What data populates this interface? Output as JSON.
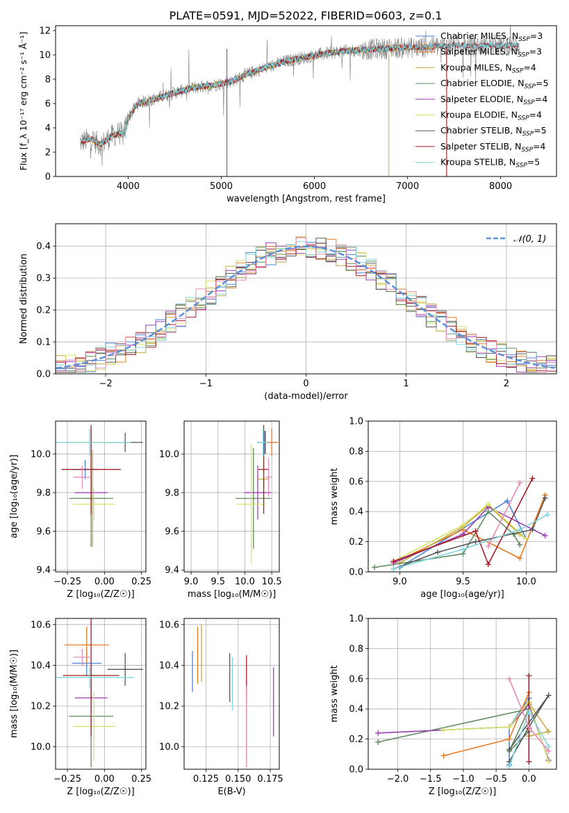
{
  "figure_title": "PLATE=0591, MJD=52022, FIBERID=0603, z=0.1",
  "palette": [
    "#4a86d6",
    "#e87a22",
    "#c8aa3c",
    "#5f8a5f",
    "#9a3fb0",
    "#d6e36a",
    "#555555",
    "#a41c25",
    "#7fd6dd",
    "#e58bb9"
  ],
  "chart_data": [
    {
      "id": "spectrum",
      "type": "line",
      "title": "PLATE=0591, MJD=52022, FIBERID=0603, z=0.1",
      "xlabel": "wavelength [Angstrom, rest frame]",
      "ylabel": "Flux [f_λ 10⁻¹⁷ erg cm⁻² s⁻¹ Å⁻¹]",
      "xlim": [
        3220,
        8600
      ],
      "ylim": [
        0,
        12.4
      ],
      "xticks": [
        4000,
        5000,
        6000,
        7000,
        8000
      ],
      "yticks": [
        0,
        2,
        4,
        6,
        8,
        10,
        12
      ],
      "grid": false,
      "legend_position": "upper-right",
      "observed_color": "#808080",
      "observed_profile": {
        "x": [
          3480,
          3600,
          3700,
          3800,
          3900,
          3950,
          4000,
          4100,
          4300,
          4500,
          4700,
          4900,
          5100,
          5300,
          5500,
          5700,
          5900,
          6100,
          6300,
          6500,
          6700,
          6900,
          7100,
          7300,
          7500,
          7700,
          7900,
          8100,
          8200
        ],
        "y": [
          2.8,
          3.1,
          2.6,
          3.2,
          3.6,
          3.4,
          4.8,
          6.0,
          6.4,
          6.9,
          7.3,
          7.5,
          7.8,
          8.5,
          9.0,
          9.5,
          9.8,
          10.1,
          10.3,
          10.4,
          10.5,
          10.6,
          10.6,
          10.7,
          10.8,
          10.7,
          10.8,
          10.8,
          10.8
        ]
      },
      "series": [
        {
          "name": "Chabrier MILES, N_SSP=3",
          "color": "#4a86d6",
          "lx": 3500,
          "rx": 7420
        },
        {
          "name": "Salpeter MILES, N_SSP=3",
          "color": "#e87a22",
          "lx": 3500,
          "rx": 7420
        },
        {
          "name": "Kroupa MILES, N_SSP=4",
          "color": "#c8aa3c",
          "lx": 3500,
          "rx": 7420
        },
        {
          "name": "Chabrier ELODIE, N_SSP=5",
          "color": "#5f8a5f",
          "lx": 3900,
          "rx": 6800
        },
        {
          "name": "Salpeter ELODIE, N_SSP=4",
          "color": "#9a3fb0",
          "lx": 3900,
          "rx": 6800
        },
        {
          "name": "Kroupa ELODIE, N_SSP=4",
          "color": "#d6e36a",
          "lx": 3900,
          "rx": 6800
        },
        {
          "name": "Chabrier STELIB, N_SSP=5",
          "color": "#555555",
          "lx": 3500,
          "rx": 8200
        },
        {
          "name": "Salpeter STELIB, N_SSP=4",
          "color": "#a41c25",
          "lx": 3500,
          "rx": 8200
        },
        {
          "name": "Kroupa STELIB, N_SSP=5",
          "color": "#7fd6dd",
          "lx": 3500,
          "rx": 8200
        }
      ],
      "legend_labels": [
        "Chabrier MILES, N",
        "Salpeter MILES, N",
        "Kroupa MILES, N",
        "Chabrier ELODIE, N",
        "Salpeter ELODIE, N",
        "Kroupa ELODIE, N",
        "Chabrier STELIB, N",
        "Salpeter STELIB, N",
        "Kroupa STELIB, N"
      ],
      "legend_values": [
        "3",
        "3",
        "4",
        "5",
        "4",
        "4",
        "5",
        "4",
        "5"
      ],
      "legend_sub": "SSP"
    },
    {
      "id": "residuals",
      "type": "line",
      "xlabel": "(data-model)/error",
      "ylabel": "Normed distribution",
      "xlim": [
        -2.5,
        2.5
      ],
      "ylim": [
        0,
        0.47
      ],
      "xticks": [
        -2,
        -1,
        0,
        1,
        2
      ],
      "yticks": [
        0.0,
        0.1,
        0.2,
        0.3,
        0.4
      ],
      "grid": true,
      "legend_position": "upper-right",
      "bin_width": 0.1,
      "reference": {
        "name": "𝒩(0, 1)",
        "mu": 0,
        "sigma": 1,
        "color": "#5b8fd6",
        "style": "dashed"
      }
    },
    {
      "id": "age_vs_Z",
      "type": "scatter",
      "xlabel": "Z [log₁₀(Z/Z☉)]",
      "ylabel": "age  [log₁₀(age/yr)]",
      "xlim": [
        -0.33,
        0.28
      ],
      "ylim": [
        9.39,
        10.17
      ],
      "xticks": [
        -0.25,
        0.0,
        0.25
      ],
      "yticks": [
        9.4,
        9.6,
        9.8,
        10.0
      ],
      "grid": true,
      "points": [
        {
          "x": -0.13,
          "xerr": 0.09,
          "y": 9.92,
          "yerr": 0.05
        },
        {
          "x": -0.09,
          "xerr": 0.17,
          "y": 10.06,
          "yerr": 0.07
        },
        {
          "x": -0.08,
          "xerr": 0.06,
          "y": 9.77,
          "yerr": 0.25
        },
        {
          "x": -0.09,
          "xerr": 0.15,
          "y": 9.77,
          "yerr": 0.25
        },
        {
          "x": -0.09,
          "xerr": 0.11,
          "y": 9.8,
          "yerr": 0.12
        },
        {
          "x": -0.07,
          "xerr": 0.14,
          "y": 9.74,
          "yerr": 0.08
        },
        {
          "x": 0.14,
          "xerr": 0.12,
          "y": 10.06,
          "yerr": 0.05
        },
        {
          "x": -0.09,
          "xerr": 0.2,
          "y": 9.92,
          "yerr": 0.23
        },
        {
          "x": -0.1,
          "xerr": 0.28,
          "y": 10.06,
          "yerr": 0.07
        },
        {
          "x": -0.15,
          "xerr": 0.06,
          "y": 9.88,
          "yerr": 0.06
        }
      ]
    },
    {
      "id": "age_vs_mass",
      "type": "scatter",
      "xlabel": "mass [log₁₀(M/M☉)]",
      "ylabel": "",
      "xlim": [
        8.87,
        10.64
      ],
      "ylim": [
        9.39,
        10.17
      ],
      "xticks": [
        9.0,
        9.5,
        10.0,
        10.5
      ],
      "yticks": [
        9.4,
        9.6,
        9.8,
        10.0
      ],
      "grid": true,
      "points": [
        {
          "x": 10.37,
          "xerr": 0.14,
          "y": 10.06,
          "yerr": 0.06
        },
        {
          "x": 10.5,
          "xerr": 0.12,
          "y": 10.06,
          "yerr": 0.07
        },
        {
          "x": 10.35,
          "xerr": 0.1,
          "y": 9.87,
          "yerr": 0.12
        },
        {
          "x": 10.16,
          "xerr": 0.33,
          "y": 9.77,
          "yerr": 0.26
        },
        {
          "x": 10.24,
          "xerr": 0.25,
          "y": 9.8,
          "yerr": 0.14
        },
        {
          "x": 10.12,
          "xerr": 0.26,
          "y": 9.74,
          "yerr": 0.31
        },
        {
          "x": 10.38,
          "xerr": 0.04,
          "y": 10.06,
          "yerr": 0.06
        },
        {
          "x": 10.35,
          "xerr": 0.1,
          "y": 9.92,
          "yerr": 0.23
        },
        {
          "x": 10.34,
          "xerr": 0.09,
          "y": 10.06,
          "yerr": 0.07
        },
        {
          "x": 10.44,
          "xerr": 0.06,
          "y": 9.88,
          "yerr": 0.1
        }
      ]
    },
    {
      "id": "weight_vs_age",
      "type": "line",
      "xlabel": "age  [log₁₀(age/yr)]",
      "ylabel": "mass weight",
      "xlim": [
        8.75,
        10.24
      ],
      "ylim": [
        0,
        1.0
      ],
      "xticks": [
        9.0,
        9.5,
        10.0
      ],
      "yticks": [
        0.0,
        0.2,
        0.4,
        0.6,
        0.8,
        1.0
      ],
      "grid": true,
      "series": [
        {
          "x": [
            9.0,
            9.0,
            9.85,
            10.0
          ],
          "y": [
            0.03,
            0.03,
            0.47,
            0.22
          ]
        },
        {
          "x": [
            9.0,
            9.5,
            9.95,
            10.15
          ],
          "y": [
            0.08,
            0.28,
            0.09,
            0.51
          ]
        },
        {
          "x": [
            9.0,
            9.5,
            9.7,
            9.95,
            10.0
          ],
          "y": [
            0.06,
            0.3,
            0.44,
            0.25,
            0.22
          ]
        },
        {
          "x": [
            8.8,
            9.5,
            9.7,
            9.9,
            9.95
          ],
          "y": [
            0.03,
            0.12,
            0.4,
            0.25,
            0.18
          ]
        },
        {
          "x": [
            8.95,
            9.5,
            9.7,
            10.15
          ],
          "y": [
            0.06,
            0.25,
            0.43,
            0.24
          ]
        },
        {
          "x": [
            8.95,
            9.5,
            9.7,
            10.0
          ],
          "y": [
            0.07,
            0.31,
            0.45,
            0.22
          ]
        },
        {
          "x": [
            8.95,
            9.3,
            9.6,
            10.05,
            10.15
          ],
          "y": [
            0.02,
            0.13,
            0.2,
            0.28,
            0.49
          ]
        },
        {
          "x": [
            8.95,
            9.6,
            9.7,
            10.05
          ],
          "y": [
            0.07,
            0.27,
            0.05,
            0.62
          ]
        },
        {
          "x": [
            8.95,
            9.5,
            9.95,
            10.17
          ],
          "y": [
            0.02,
            0.15,
            0.28,
            0.38
          ]
        },
        {
          "x": [
            9.7,
            9.95
          ],
          "y": [
            0.17,
            0.59
          ]
        }
      ]
    },
    {
      "id": "mass_vs_Z",
      "type": "scatter",
      "xlabel": "Z [log₁₀(Z/Z☉)]",
      "ylabel": "mass [log₁₀(M/M☉)]",
      "xlim": [
        -0.33,
        0.28
      ],
      "ylim": [
        9.89,
        10.63
      ],
      "xticks": [
        -0.25,
        0.0,
        0.25
      ],
      "yticks": [
        10.0,
        10.2,
        10.4,
        10.6
      ],
      "grid": true,
      "points": [
        {
          "x": -0.12,
          "xerr": 0.1,
          "y": 10.41,
          "yerr": 0.06
        },
        {
          "x": -0.12,
          "xerr": 0.15,
          "y": 10.5,
          "yerr": 0.09
        },
        {
          "x": -0.09,
          "xerr": 0.06,
          "y": 10.35,
          "yerr": 0.06
        },
        {
          "x": -0.09,
          "xerr": 0.15,
          "y": 10.15,
          "yerr": 0.25
        },
        {
          "x": -0.09,
          "xerr": 0.11,
          "y": 10.24,
          "yerr": 0.08
        },
        {
          "x": -0.07,
          "xerr": 0.14,
          "y": 10.1,
          "yerr": 0.17
        },
        {
          "x": 0.14,
          "xerr": 0.12,
          "y": 10.38,
          "yerr": 0.08
        },
        {
          "x": -0.09,
          "xerr": 0.19,
          "y": 10.35,
          "yerr": 0.3
        },
        {
          "x": -0.1,
          "xerr": 0.3,
          "y": 10.34,
          "yerr": 0.05
        },
        {
          "x": -0.15,
          "xerr": 0.06,
          "y": 10.44,
          "yerr": 0.04
        }
      ]
    },
    {
      "id": "mass_vs_ebv",
      "type": "scatter",
      "xlabel": "E(B-V)",
      "ylabel": "",
      "xlim": [
        0.108,
        0.182
      ],
      "ylim": [
        9.89,
        10.63
      ],
      "xticks": [
        0.125,
        0.15,
        0.175
      ],
      "xtick_labels": [
        "0.125",
        "0.150",
        "0.175"
      ],
      "yticks": [
        10.0,
        10.2,
        10.4,
        10.6
      ],
      "grid": true,
      "points": [
        {
          "x": 0.1145,
          "y": 10.37,
          "yerr": 0.1
        },
        {
          "x": 0.1185,
          "y": 10.45,
          "yerr": 0.14
        },
        {
          "x": 0.1215,
          "y": 10.46,
          "yerr": 0.14
        },
        {
          "x": 0.1565,
          "y": 10.1,
          "yerr": 0.2
        },
        {
          "x": 0.1775,
          "y": 10.22,
          "yerr": 0.17
        },
        {
          "x": 0.1565,
          "y": 10.1,
          "yerr": 0.2
        },
        {
          "x": 0.1435,
          "y": 10.34,
          "yerr": 0.12
        },
        {
          "x": 0.1565,
          "y": 10.34,
          "yerr": 0.11
        },
        {
          "x": 0.1455,
          "y": 10.31,
          "yerr": 0.13
        },
        {
          "x": 0.1565,
          "y": 10.1,
          "yerr": 0.2
        }
      ]
    },
    {
      "id": "weight_vs_Z",
      "type": "line",
      "xlabel": "Z [log₁₀(Z/Z☉)]",
      "ylabel": "mass weight",
      "xlim": [
        -2.45,
        0.42
      ],
      "ylim": [
        0,
        1.0
      ],
      "xticks": [
        -2.0,
        -1.5,
        -1.0,
        -0.5,
        0.0
      ],
      "yticks": [
        0.0,
        0.2,
        0.4,
        0.6,
        0.8,
        1.0
      ],
      "grid": true,
      "series": [
        {
          "x": [
            -0.3,
            -0.3,
            0.0,
            0.0
          ],
          "y": [
            0.03,
            0.28,
            0.47,
            0.22
          ]
        },
        {
          "x": [
            -1.3,
            -0.3,
            0.0,
            0.0
          ],
          "y": [
            0.09,
            0.2,
            0.51,
            0.28
          ]
        },
        {
          "x": [
            -0.3,
            0.0,
            0.3,
            0.0
          ],
          "y": [
            0.28,
            0.44,
            0.25,
            0.22
          ]
        },
        {
          "x": [
            -2.3,
            0.0,
            -0.3,
            0.0
          ],
          "y": [
            0.18,
            0.4,
            0.12,
            0.25
          ]
        },
        {
          "x": [
            -2.3,
            -0.3,
            0.0,
            0.3
          ],
          "y": [
            0.24,
            0.28,
            0.43,
            0.06
          ]
        },
        {
          "x": [
            -1.3,
            -0.3,
            0.0,
            0.3
          ],
          "y": [
            0.26,
            0.28,
            0.45,
            0.05
          ]
        },
        {
          "x": [
            -0.3,
            0.0,
            0.3,
            -0.3
          ],
          "y": [
            0.05,
            0.28,
            0.49,
            0.13
          ]
        },
        {
          "x": [
            0.0,
            0.0,
            0.0
          ],
          "y": [
            0.05,
            0.62,
            0.27
          ]
        },
        {
          "x": [
            -0.3,
            0.0,
            0.3
          ],
          "y": [
            0.02,
            0.38,
            0.15
          ]
        },
        {
          "x": [
            -0.3,
            0.0,
            0.3
          ],
          "y": [
            0.6,
            0.28,
            0.12
          ]
        }
      ]
    }
  ]
}
